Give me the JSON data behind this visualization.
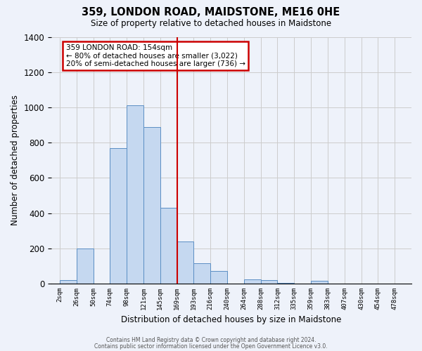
{
  "title": "359, LONDON ROAD, MAIDSTONE, ME16 0HE",
  "subtitle": "Size of property relative to detached houses in Maidstone",
  "xlabel": "Distribution of detached houses by size in Maidstone",
  "ylabel": "Number of detached properties",
  "bin_labels": [
    "2sqm",
    "26sqm",
    "50sqm",
    "74sqm",
    "98sqm",
    "121sqm",
    "145sqm",
    "169sqm",
    "193sqm",
    "216sqm",
    "240sqm",
    "264sqm",
    "288sqm",
    "312sqm",
    "335sqm",
    "359sqm",
    "383sqm",
    "407sqm",
    "430sqm",
    "454sqm",
    "478sqm"
  ],
  "bar_heights": [
    20,
    200,
    0,
    770,
    1010,
    890,
    430,
    240,
    115,
    70,
    0,
    25,
    20,
    5,
    0,
    15,
    0,
    0,
    0,
    0,
    0
  ],
  "bar_color": "#c5d8f0",
  "bar_edge_color": "#5b8ec4",
  "vline_color": "#cc0000",
  "annotation_title": "359 LONDON ROAD: 154sqm",
  "annotation_line1": "← 80% of detached houses are smaller (3,022)",
  "annotation_line2": "20% of semi-detached houses are larger (736) →",
  "annotation_box_color": "#cc0000",
  "annotation_bg": "#ffffff",
  "ylim": [
    0,
    1400
  ],
  "yticks": [
    0,
    200,
    400,
    600,
    800,
    1000,
    1200,
    1400
  ],
  "grid_color": "#cccccc",
  "bg_color": "#eef2fa",
  "footer1": "Contains HM Land Registry data © Crown copyright and database right 2024.",
  "footer2": "Contains public sector information licensed under the Open Government Licence v3.0."
}
